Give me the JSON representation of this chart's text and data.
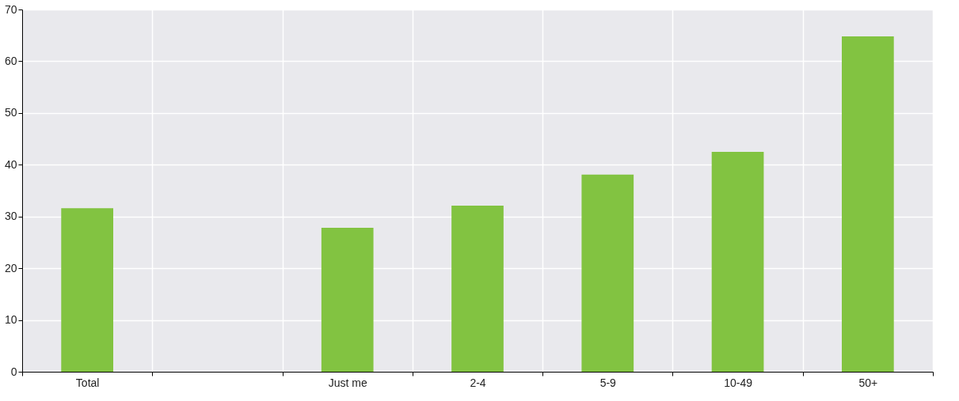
{
  "chart_data": {
    "type": "bar",
    "categories": [
      "Total",
      null,
      "Just me",
      "2-4",
      "5-9",
      "10-49",
      "50+"
    ],
    "values": [
      31.6,
      null,
      27.8,
      32.1,
      38.1,
      42.5,
      64.8
    ],
    "color": "#82c341",
    "ylim": [
      0,
      70
    ],
    "yticks": [
      0,
      10,
      20,
      30,
      40,
      50,
      60,
      70
    ],
    "grid": true
  }
}
